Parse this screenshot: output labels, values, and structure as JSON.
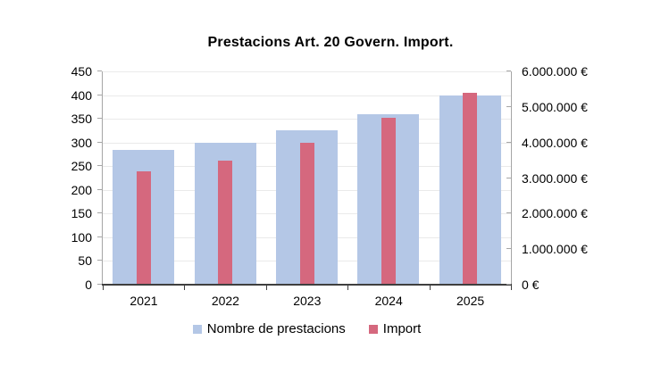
{
  "colors": {
    "background": "#FFFFFF",
    "gridline": "#EAEAEA",
    "axis_light": "#A6A6A6",
    "axis_dark": "#3F3F3F",
    "text": "#000000",
    "series_blue": "#B4C7E6",
    "series_red": "#D5687E"
  },
  "chart_data": {
    "type": "bar",
    "title": "Prestacions Art. 20 Govern. Import.",
    "categories": [
      "2021",
      "2022",
      "2023",
      "2024",
      "2025"
    ],
    "series": [
      {
        "name": "Nombre de prestacions",
        "axis": "left",
        "color": "#B4C7E6",
        "values": [
          285,
          300,
          325,
          360,
          400
        ]
      },
      {
        "name": "Import",
        "axis": "right",
        "color": "#D5687E",
        "values": [
          3200000,
          3500000,
          4000000,
          4700000,
          5400000
        ]
      }
    ],
    "left_axis": {
      "min": 0,
      "max": 450,
      "step": 50,
      "tick_labels": [
        "0",
        "50",
        "100",
        "150",
        "200",
        "250",
        "300",
        "350",
        "400",
        "450"
      ]
    },
    "right_axis": {
      "min": 0,
      "max": 6000000,
      "step": 1000000,
      "tick_labels": [
        "0 €",
        "1.000.000 €",
        "2.000.000 €",
        "3.000.000 €",
        "4.000.000 €",
        "5.000.000 €",
        "6.000.000 €"
      ]
    },
    "grid": true,
    "legend_position": "bottom"
  }
}
